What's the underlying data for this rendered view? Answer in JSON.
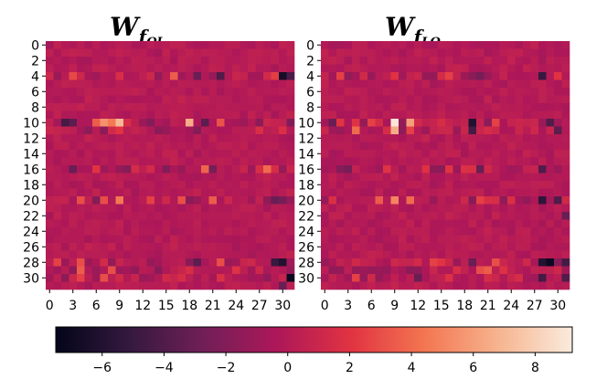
{
  "chart_data": [
    {
      "type": "heatmap",
      "title": "W_f_QL",
      "title_main": "W",
      "title_sub_f": "f",
      "title_sub_rest": "QL",
      "rows": 32,
      "cols": 32,
      "xticks": [
        "0",
        "3",
        "6",
        "9",
        "12",
        "15",
        "18",
        "21",
        "24",
        "27",
        "30"
      ],
      "yticks": [
        "0",
        "2",
        "4",
        "6",
        "8",
        "10",
        "12",
        "14",
        "16",
        "18",
        "20",
        "22",
        "24",
        "26",
        "28",
        "30"
      ],
      "highlights": [
        {
          "row": 4,
          "col": 3,
          "value": 2.8
        },
        {
          "row": 4,
          "col": 9,
          "value": 1.6
        },
        {
          "row": 4,
          "col": 16,
          "value": 3.5
        },
        {
          "row": 4,
          "col": 19,
          "value": -3.0
        },
        {
          "row": 4,
          "col": 22,
          "value": -4.0
        },
        {
          "row": 4,
          "col": 29,
          "value": 2.4
        },
        {
          "row": 4,
          "col": 30,
          "value": -6.5
        },
        {
          "row": 4,
          "col": 31,
          "value": -4.2
        },
        {
          "row": 10,
          "col": 2,
          "value": -4.5
        },
        {
          "row": 10,
          "col": 3,
          "value": -3.5
        },
        {
          "row": 10,
          "col": 6,
          "value": 3.5
        },
        {
          "row": 10,
          "col": 7,
          "value": 5.5
        },
        {
          "row": 10,
          "col": 8,
          "value": 4.5
        },
        {
          "row": 10,
          "col": 9,
          "value": 7.0
        },
        {
          "row": 10,
          "col": 18,
          "value": 6.5
        },
        {
          "row": 10,
          "col": 20,
          "value": -3.5
        },
        {
          "row": 10,
          "col": 22,
          "value": 3.2
        },
        {
          "row": 11,
          "col": 9,
          "value": 2.0
        },
        {
          "row": 16,
          "col": 3,
          "value": -3.0
        },
        {
          "row": 16,
          "col": 6,
          "value": 2.0
        },
        {
          "row": 16,
          "col": 20,
          "value": 3.8
        },
        {
          "row": 16,
          "col": 21,
          "value": -2.5
        },
        {
          "row": 16,
          "col": 28,
          "value": 4.0
        },
        {
          "row": 16,
          "col": 29,
          "value": 1.5
        },
        {
          "row": 20,
          "col": 4,
          "value": 3.0
        },
        {
          "row": 20,
          "col": 7,
          "value": 3.0
        },
        {
          "row": 20,
          "col": 9,
          "value": 4.5
        },
        {
          "row": 20,
          "col": 13,
          "value": 2.5
        },
        {
          "row": 20,
          "col": 17,
          "value": 3.0
        },
        {
          "row": 20,
          "col": 21,
          "value": 3.5
        },
        {
          "row": 20,
          "col": 29,
          "value": -3.0
        },
        {
          "row": 20,
          "col": 30,
          "value": -2.5
        },
        {
          "row": 28,
          "col": 1,
          "value": 2.5
        },
        {
          "row": 28,
          "col": 4,
          "value": 3.0
        },
        {
          "row": 28,
          "col": 19,
          "value": -3.5
        },
        {
          "row": 28,
          "col": 22,
          "value": 3.0
        },
        {
          "row": 28,
          "col": 29,
          "value": -5.0
        },
        {
          "row": 28,
          "col": 30,
          "value": -6.0
        },
        {
          "row": 29,
          "col": 4,
          "value": 3.5
        },
        {
          "row": 29,
          "col": 8,
          "value": 3.0
        },
        {
          "row": 30,
          "col": 4,
          "value": 2.5
        },
        {
          "row": 30,
          "col": 7,
          "value": 3.0
        },
        {
          "row": 30,
          "col": 31,
          "value": -7.0
        },
        {
          "row": 31,
          "col": 30,
          "value": -3.0
        }
      ],
      "seed": 7
    },
    {
      "type": "heatmap",
      "title": "W_f_LQ",
      "title_main": "W",
      "title_sub_f": "f",
      "title_sub_rest": "LQ",
      "rows": 32,
      "cols": 32,
      "xticks": [
        "0",
        "3",
        "6",
        "9",
        "12",
        "15",
        "18",
        "21",
        "24",
        "27",
        "30"
      ],
      "yticks": [
        "0",
        "2",
        "4",
        "6",
        "8",
        "10",
        "12",
        "14",
        "16",
        "18",
        "20",
        "22",
        "24",
        "26",
        "28",
        "30"
      ],
      "highlights": [
        {
          "row": 4,
          "col": 2,
          "value": 2.5
        },
        {
          "row": 4,
          "col": 9,
          "value": 2.0
        },
        {
          "row": 4,
          "col": 16,
          "value": 2.5
        },
        {
          "row": 4,
          "col": 20,
          "value": -2.5
        },
        {
          "row": 4,
          "col": 28,
          "value": -5.0
        },
        {
          "row": 4,
          "col": 30,
          "value": 2.0
        },
        {
          "row": 10,
          "col": 1,
          "value": -3.0
        },
        {
          "row": 10,
          "col": 6,
          "value": 2.5
        },
        {
          "row": 10,
          "col": 9,
          "value": 9.0
        },
        {
          "row": 10,
          "col": 11,
          "value": 6.0
        },
        {
          "row": 10,
          "col": 19,
          "value": -6.0
        },
        {
          "row": 10,
          "col": 22,
          "value": 2.5
        },
        {
          "row": 10,
          "col": 29,
          "value": -4.0
        },
        {
          "row": 11,
          "col": 4,
          "value": 4.0
        },
        {
          "row": 11,
          "col": 9,
          "value": 6.5
        },
        {
          "row": 11,
          "col": 11,
          "value": 2.5
        },
        {
          "row": 11,
          "col": 19,
          "value": -4.5
        },
        {
          "row": 11,
          "col": 30,
          "value": -3.5
        },
        {
          "row": 16,
          "col": 3,
          "value": -2.5
        },
        {
          "row": 16,
          "col": 16,
          "value": 2.0
        },
        {
          "row": 16,
          "col": 20,
          "value": -3.0
        },
        {
          "row": 16,
          "col": 28,
          "value": -4.0
        },
        {
          "row": 20,
          "col": 7,
          "value": 3.5
        },
        {
          "row": 20,
          "col": 9,
          "value": 5.0
        },
        {
          "row": 20,
          "col": 11,
          "value": 4.0
        },
        {
          "row": 20,
          "col": 20,
          "value": 2.5
        },
        {
          "row": 20,
          "col": 28,
          "value": -5.5
        },
        {
          "row": 20,
          "col": 30,
          "value": -4.0
        },
        {
          "row": 22,
          "col": 31,
          "value": -3.0
        },
        {
          "row": 28,
          "col": 14,
          "value": 2.5
        },
        {
          "row": 28,
          "col": 19,
          "value": -3.0
        },
        {
          "row": 28,
          "col": 22,
          "value": 3.0
        },
        {
          "row": 28,
          "col": 28,
          "value": -6.0
        },
        {
          "row": 28,
          "col": 29,
          "value": -7.0
        },
        {
          "row": 28,
          "col": 31,
          "value": -4.5
        },
        {
          "row": 29,
          "col": 20,
          "value": 3.0
        },
        {
          "row": 29,
          "col": 21,
          "value": 3.5
        },
        {
          "row": 30,
          "col": 4,
          "value": 2.5
        },
        {
          "row": 30,
          "col": 12,
          "value": -3.0
        },
        {
          "row": 30,
          "col": 28,
          "value": -4.5
        },
        {
          "row": 30,
          "col": 31,
          "value": -4.0
        }
      ],
      "seed": 13
    }
  ],
  "colorbar": {
    "vmin": -7.5,
    "vmax": 9.2,
    "ticks": [
      "−6",
      "−4",
      "−2",
      "0",
      "2",
      "4",
      "6",
      "8"
    ],
    "tick_values": [
      -6,
      -4,
      -2,
      0,
      2,
      4,
      6,
      8
    ],
    "colormap": "rocket",
    "stops": [
      "#03051a",
      "#35193e",
      "#701f57",
      "#ad1759",
      "#e13342",
      "#f37651",
      "#f6b48f",
      "#faebdd"
    ]
  }
}
